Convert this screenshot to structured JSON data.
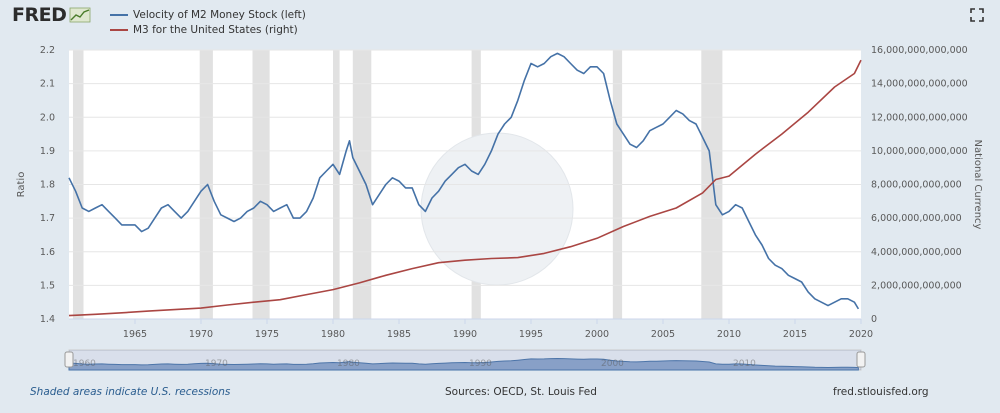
{
  "header": {
    "logo_text": "FRED",
    "fullscreen_icon": "expand-icon"
  },
  "legend": [
    {
      "label": "Velocity of M2 Money Stock (left)",
      "color": "#4572a7"
    },
    {
      "label": "M3 for the United States (right)",
      "color": "#aa4643"
    }
  ],
  "footer": {
    "recession_note": "Shaded areas indicate U.S. recessions",
    "sources": "Sources: OECD, St. Louis Fed",
    "site": "fred.stlouisfed.org"
  },
  "navigator": {
    "tick_labels": [
      "1960",
      "1970",
      "1980",
      "1990",
      "2000",
      "2010"
    ]
  },
  "chart_data": {
    "type": "line",
    "xlim": [
      1960,
      2020
    ],
    "x_ticks": [
      1965,
      1970,
      1975,
      1980,
      1985,
      1990,
      1995,
      2000,
      2005,
      2010,
      2015,
      2020
    ],
    "left_axis": {
      "label": "Ratio",
      "ylim": [
        1.4,
        2.2
      ],
      "ticks": [
        "1.4",
        "1.5",
        "1.6",
        "1.7",
        "1.8",
        "1.9",
        "2.0",
        "2.1",
        "2.2"
      ]
    },
    "right_axis": {
      "label": "National Currency",
      "ylim": [
        0,
        16000000000000
      ],
      "ticks": [
        "0",
        "2,000,000,000,000",
        "4,000,000,000,000",
        "6,000,000,000,000",
        "8,000,000,000,000",
        "10,000,000,000,000",
        "12,000,000,000,000",
        "14,000,000,000,000",
        "16,000,000,000,000"
      ]
    },
    "recessions": [
      [
        1960.3,
        1961.1
      ],
      [
        1969.9,
        1970.9
      ],
      [
        1973.9,
        1975.2
      ],
      [
        1980.0,
        1980.5
      ],
      [
        1981.5,
        1982.9
      ],
      [
        1990.5,
        1991.2
      ],
      [
        2001.2,
        2001.9
      ],
      [
        2007.9,
        2009.5
      ]
    ],
    "grid": true,
    "series": [
      {
        "name": "Velocity of M2 Money Stock (left)",
        "axis": "left",
        "color": "#4572a7",
        "x": [
          1960.0,
          1960.5,
          1961.0,
          1961.5,
          1962.0,
          1962.5,
          1963.0,
          1963.5,
          1964.0,
          1964.5,
          1965.0,
          1965.5,
          1966.0,
          1966.5,
          1967.0,
          1967.5,
          1968.0,
          1968.5,
          1969.0,
          1969.5,
          1970.0,
          1970.5,
          1971.0,
          1971.5,
          1972.0,
          1972.5,
          1973.0,
          1973.5,
          1974.0,
          1974.5,
          1975.0,
          1975.5,
          1976.0,
          1976.5,
          1977.0,
          1977.5,
          1978.0,
          1978.5,
          1979.0,
          1979.5,
          1980.0,
          1980.5,
          1981.0,
          1981.25,
          1981.5,
          1982.0,
          1982.5,
          1983.0,
          1983.5,
          1984.0,
          1984.5,
          1985.0,
          1985.5,
          1986.0,
          1986.5,
          1987.0,
          1987.5,
          1988.0,
          1988.5,
          1989.0,
          1989.5,
          1990.0,
          1990.5,
          1991.0,
          1991.5,
          1992.0,
          1992.5,
          1993.0,
          1993.5,
          1994.0,
          1994.5,
          1995.0,
          1995.5,
          1996.0,
          1996.5,
          1997.0,
          1997.5,
          1998.0,
          1998.5,
          1999.0,
          1999.5,
          2000.0,
          2000.5,
          2001.0,
          2001.5,
          2002.0,
          2002.5,
          2003.0,
          2003.5,
          2004.0,
          2004.5,
          2005.0,
          2005.5,
          2006.0,
          2006.5,
          2007.0,
          2007.5,
          2008.0,
          2008.5,
          2009.0,
          2009.5,
          2010.0,
          2010.5,
          2011.0,
          2011.5,
          2012.0,
          2012.5,
          2013.0,
          2013.5,
          2014.0,
          2014.5,
          2015.0,
          2015.5,
          2016.0,
          2016.5,
          2017.0,
          2017.5,
          2018.0,
          2018.5,
          2019.0,
          2019.5,
          2019.8
        ],
        "y": [
          1.82,
          1.78,
          1.73,
          1.72,
          1.73,
          1.74,
          1.72,
          1.7,
          1.68,
          1.68,
          1.68,
          1.66,
          1.67,
          1.7,
          1.73,
          1.74,
          1.72,
          1.7,
          1.72,
          1.75,
          1.78,
          1.8,
          1.75,
          1.71,
          1.7,
          1.69,
          1.7,
          1.72,
          1.73,
          1.75,
          1.74,
          1.72,
          1.73,
          1.74,
          1.7,
          1.7,
          1.72,
          1.76,
          1.82,
          1.84,
          1.86,
          1.83,
          1.9,
          1.93,
          1.88,
          1.84,
          1.8,
          1.74,
          1.77,
          1.8,
          1.82,
          1.81,
          1.79,
          1.79,
          1.74,
          1.72,
          1.76,
          1.78,
          1.81,
          1.83,
          1.85,
          1.86,
          1.84,
          1.83,
          1.86,
          1.9,
          1.95,
          1.98,
          2.0,
          2.05,
          2.11,
          2.16,
          2.15,
          2.16,
          2.18,
          2.19,
          2.18,
          2.16,
          2.14,
          2.13,
          2.15,
          2.15,
          2.13,
          2.05,
          1.98,
          1.95,
          1.92,
          1.91,
          1.93,
          1.96,
          1.97,
          1.98,
          2.0,
          2.02,
          2.01,
          1.99,
          1.98,
          1.94,
          1.9,
          1.74,
          1.71,
          1.72,
          1.74,
          1.73,
          1.69,
          1.65,
          1.62,
          1.58,
          1.56,
          1.55,
          1.53,
          1.52,
          1.51,
          1.48,
          1.46,
          1.45,
          1.44,
          1.45,
          1.46,
          1.46,
          1.45,
          1.43
        ]
      },
      {
        "name": "M3 for the United States (right)",
        "axis": "right",
        "color": "#aa4643",
        "x": [
          1960,
          1962,
          1964,
          1966,
          1968,
          1970,
          1972,
          1974,
          1976,
          1978,
          1980,
          1982,
          1984,
          1986,
          1988,
          1990,
          1992,
          1994,
          1996,
          1998,
          2000,
          2002,
          2004,
          2006,
          2008,
          2009,
          2010,
          2012,
          2014,
          2016,
          2018,
          2019.5,
          2020
        ],
        "y": [
          200000000000,
          280000000000,
          370000000000,
          470000000000,
          560000000000,
          650000000000,
          830000000000,
          1000000000000,
          1150000000000,
          1450000000000,
          1750000000000,
          2150000000000,
          2600000000000,
          3000000000000,
          3350000000000,
          3500000000000,
          3600000000000,
          3650000000000,
          3900000000000,
          4300000000000,
          4800000000000,
          5500000000000,
          6100000000000,
          6600000000000,
          7500000000000,
          8300000000000,
          8500000000000,
          9800000000000,
          11000000000000,
          12300000000000,
          13800000000000,
          14600000000000,
          15400000000000
        ]
      }
    ]
  }
}
